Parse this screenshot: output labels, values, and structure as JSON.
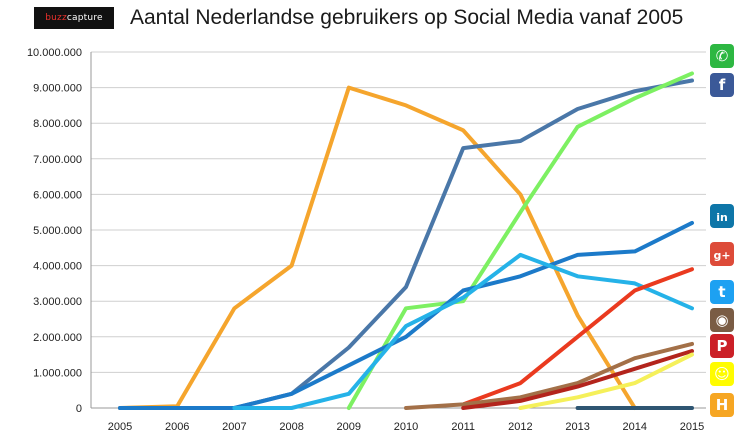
{
  "header": {
    "logo_prefix": "buzz",
    "logo_suffix": "capture",
    "title": "Aantal Nederlandse gebruikers op Social Media vanaf 2005"
  },
  "icons": [
    {
      "name": "whatsapp-icon",
      "color": "#2db742",
      "glyph": "✆"
    },
    {
      "name": "facebook-icon",
      "color": "#3b5998",
      "glyph": "f"
    },
    {
      "name": "linkedin-icon",
      "color": "#0e76a8",
      "glyph": "in"
    },
    {
      "name": "google-plus-icon",
      "color": "#dd4b39",
      "glyph": "g+"
    },
    {
      "name": "twitter-icon",
      "color": "#1da1f2",
      "glyph": "t"
    },
    {
      "name": "instagram-icon",
      "color": "#7a5c44",
      "glyph": "◉"
    },
    {
      "name": "pinterest-icon",
      "color": "#cb2027",
      "glyph": "P"
    },
    {
      "name": "snapchat-icon",
      "color": "#fffc00",
      "glyph": "☺"
    },
    {
      "name": "hyves-icon",
      "color": "#f6a623",
      "glyph": "H"
    }
  ],
  "chart_data": {
    "type": "line",
    "title": "Aantal Nederlandse gebruikers op Social Media vanaf 2005",
    "xlabel": "",
    "ylabel": "",
    "ylim": [
      0,
      10000000
    ],
    "grid": "horizontal",
    "y_ticks": [
      "0",
      "1.000.000",
      "2.000.000",
      "3.000.000",
      "4.000.000",
      "5.000.000",
      "6.000.000",
      "7.000.000",
      "8.000.000",
      "9.000.000",
      "10.000.000"
    ],
    "y_tick_values": [
      0,
      1000000,
      2000000,
      3000000,
      4000000,
      5000000,
      6000000,
      7000000,
      8000000,
      9000000,
      10000000
    ],
    "categories": [
      "2005",
      "2006",
      "2007",
      "2008",
      "2009",
      "2010",
      "2011",
      "2012",
      "2013",
      "2014",
      "2015"
    ],
    "series": [
      {
        "icon": "hyves-icon",
        "color": "#f5a52d",
        "values": [
          0,
          50000,
          2800000,
          4000000,
          9000000,
          8500000,
          7800000,
          6000000,
          2600000,
          0,
          null
        ]
      },
      {
        "icon": "facebook-icon",
        "color": "#4a77a8",
        "values": [
          0,
          0,
          0,
          400000,
          1700000,
          3400000,
          7300000,
          7500000,
          8400000,
          8900000,
          9200000
        ]
      },
      {
        "icon": "whatsapp-icon",
        "color": "#7df062",
        "values": [
          null,
          null,
          null,
          null,
          0,
          2800000,
          3000000,
          5500000,
          7900000,
          8700000,
          9400000
        ]
      },
      {
        "icon": "linkedin-icon",
        "color": "#1c7ac9",
        "values": [
          0,
          0,
          0,
          400000,
          1200000,
          2000000,
          3300000,
          3700000,
          4300000,
          4400000,
          5200000
        ]
      },
      {
        "icon": "twitter-icon",
        "color": "#25b2e8",
        "values": [
          null,
          null,
          0,
          0,
          400000,
          2300000,
          3100000,
          4300000,
          3700000,
          3500000,
          2800000
        ]
      },
      {
        "icon": "google-plus-icon",
        "color": "#ea3a1f",
        "values": [
          null,
          null,
          null,
          null,
          null,
          null,
          100000,
          700000,
          2000000,
          3300000,
          3900000
        ]
      },
      {
        "icon": "instagram-icon",
        "color": "#a37048",
        "values": [
          null,
          null,
          null,
          null,
          null,
          0,
          100000,
          300000,
          700000,
          1400000,
          1800000
        ]
      },
      {
        "icon": "pinterest-icon",
        "color": "#b3241c",
        "values": [
          null,
          null,
          null,
          null,
          null,
          null,
          0,
          200000,
          600000,
          1100000,
          1600000
        ]
      },
      {
        "icon": "snapchat-icon",
        "color": "#f5f05a",
        "values": [
          null,
          null,
          null,
          null,
          null,
          null,
          null,
          0,
          300000,
          700000,
          1500000
        ]
      },
      {
        "icon": "dark-line",
        "color": "#2e5572",
        "values": [
          null,
          null,
          null,
          null,
          null,
          null,
          null,
          null,
          0,
          0,
          0
        ]
      }
    ]
  }
}
